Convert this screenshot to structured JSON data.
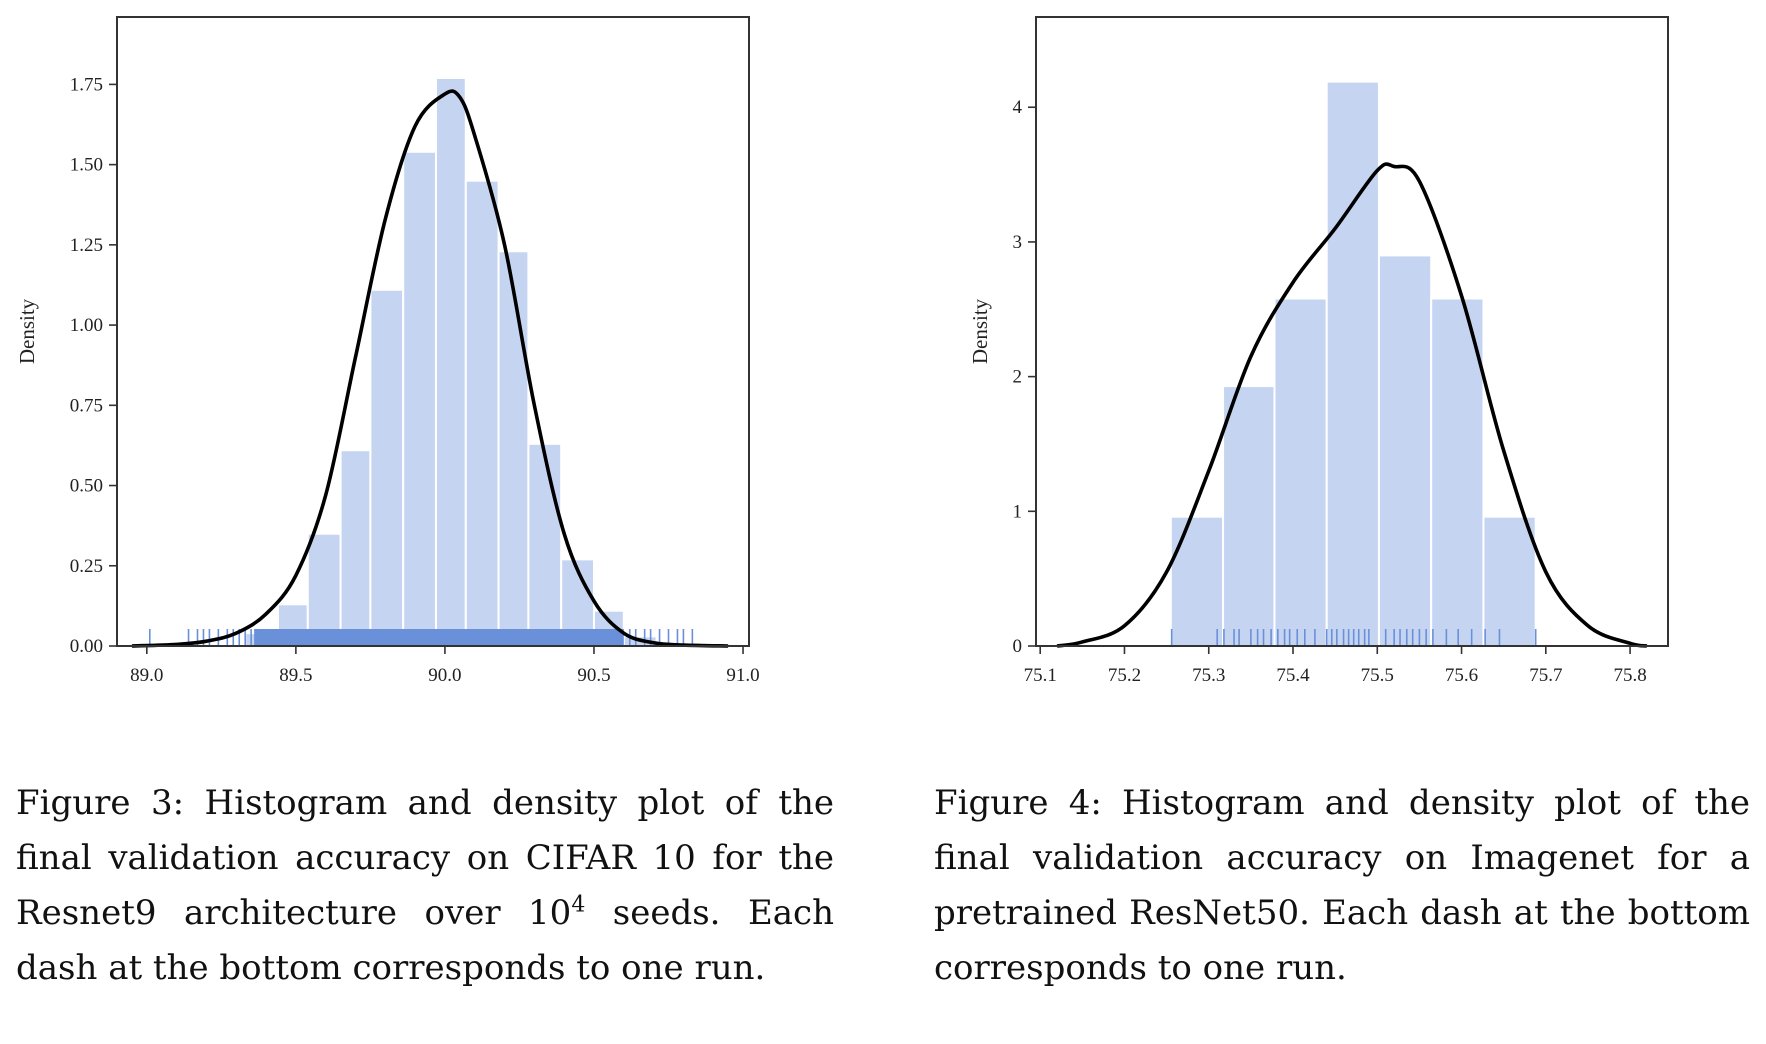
{
  "chart_data": [
    {
      "type": "histogram",
      "ylabel": "Density",
      "xlim": [
        88.9,
        91.02
      ],
      "ylim": [
        0,
        1.96
      ],
      "xticks": [
        89.0,
        89.5,
        90.0,
        90.5,
        91.0
      ],
      "xtick_labels": [
        "89.0",
        "89.5",
        "90.0",
        "90.5",
        "91.0"
      ],
      "yticks": [
        0,
        0.25,
        0.5,
        0.75,
        1.0,
        1.25,
        1.5,
        1.75
      ],
      "ytick_labels": [
        "0.00",
        "0.25",
        "0.50",
        "0.75",
        "1.00",
        "1.25",
        "1.50",
        "1.75"
      ],
      "bins": [
        {
          "x0": 89.33,
          "x1": 89.44,
          "value": 0.04
        },
        {
          "x0": 89.44,
          "x1": 89.54,
          "value": 0.13
        },
        {
          "x0": 89.54,
          "x1": 89.65,
          "value": 0.35
        },
        {
          "x0": 89.65,
          "x1": 89.75,
          "value": 0.61
        },
        {
          "x0": 89.75,
          "x1": 89.86,
          "value": 1.11
        },
        {
          "x0": 89.86,
          "x1": 89.97,
          "value": 1.54
        },
        {
          "x0": 89.97,
          "x1": 90.07,
          "value": 1.77
        },
        {
          "x0": 90.07,
          "x1": 90.18,
          "value": 1.45
        },
        {
          "x0": 90.18,
          "x1": 90.28,
          "value": 1.23
        },
        {
          "x0": 90.28,
          "x1": 90.39,
          "value": 0.63
        },
        {
          "x0": 90.39,
          "x1": 90.5,
          "value": 0.27
        },
        {
          "x0": 90.5,
          "x1": 90.6,
          "value": 0.11
        },
        {
          "x0": 90.6,
          "x1": 90.71,
          "value": 0.03
        }
      ],
      "kde": {
        "x": [
          88.95,
          89.1,
          89.2,
          89.3,
          89.4,
          89.5,
          89.6,
          89.7,
          89.8,
          89.9,
          90.0,
          90.05,
          90.1,
          90.2,
          90.3,
          90.4,
          90.5,
          90.6,
          90.7,
          90.8,
          90.95
        ],
        "y": [
          0.0,
          0.005,
          0.015,
          0.04,
          0.1,
          0.22,
          0.47,
          0.9,
          1.33,
          1.62,
          1.72,
          1.71,
          1.59,
          1.25,
          0.75,
          0.35,
          0.14,
          0.04,
          0.01,
          0.003,
          0.0
        ]
      },
      "rug": {
        "dense_range": [
          89.36,
          90.6
        ],
        "values": [
          89.01,
          89.14,
          89.17,
          89.19,
          89.21,
          89.24,
          89.27,
          89.29,
          89.31,
          89.33,
          89.35,
          89.61,
          90.62,
          90.64,
          90.67,
          90.69,
          90.72,
          90.75,
          90.78,
          90.8,
          90.83
        ]
      },
      "bar_color": "#c5d5f1",
      "rug_color": "#6b90da",
      "line_color": "#000000"
    },
    {
      "type": "histogram",
      "ylabel": "Density",
      "xlim": [
        75.095,
        75.845
      ],
      "ylim": [
        0,
        4.67
      ],
      "xticks": [
        75.1,
        75.2,
        75.3,
        75.4,
        75.5,
        75.6,
        75.7,
        75.8
      ],
      "xtick_labels": [
        "75.1",
        "75.2",
        "75.3",
        "75.4",
        "75.5",
        "75.6",
        "75.7",
        "75.8"
      ],
      "yticks": [
        0,
        1,
        2,
        3,
        4
      ],
      "ytick_labels": [
        "0",
        "1",
        "2",
        "3",
        "4"
      ],
      "bins": [
        {
          "x0": 75.255,
          "x1": 75.317,
          "value": 0.96
        },
        {
          "x0": 75.317,
          "x1": 75.378,
          "value": 1.93
        },
        {
          "x0": 75.378,
          "x1": 75.44,
          "value": 2.58
        },
        {
          "x0": 75.44,
          "x1": 75.502,
          "value": 4.19
        },
        {
          "x0": 75.502,
          "x1": 75.564,
          "value": 2.9
        },
        {
          "x0": 75.564,
          "x1": 75.626,
          "value": 2.58
        },
        {
          "x0": 75.626,
          "x1": 75.688,
          "value": 0.96
        }
      ],
      "kde": {
        "x": [
          75.12,
          75.15,
          75.2,
          75.25,
          75.3,
          75.35,
          75.4,
          75.45,
          75.5,
          75.52,
          75.55,
          75.6,
          75.65,
          75.7,
          75.75,
          75.8,
          75.82
        ],
        "y": [
          0.0,
          0.03,
          0.15,
          0.55,
          1.3,
          2.15,
          2.7,
          3.1,
          3.53,
          3.56,
          3.45,
          2.6,
          1.45,
          0.55,
          0.15,
          0.02,
          0.0
        ]
      },
      "rug": {
        "values": [
          75.256,
          75.31,
          75.318,
          75.33,
          75.336,
          75.35,
          75.358,
          75.365,
          75.374,
          75.382,
          75.39,
          75.396,
          75.405,
          75.414,
          75.426,
          75.44,
          75.446,
          75.452,
          75.46,
          75.466,
          75.472,
          75.478,
          75.485,
          75.49,
          75.51,
          75.52,
          75.527,
          75.535,
          75.542,
          75.55,
          75.558,
          75.566,
          75.582,
          75.596,
          75.612,
          75.628,
          75.645,
          75.688
        ]
      },
      "bar_color": "#c5d5f1",
      "rug_color": "#6b90da",
      "line_color": "#000000"
    }
  ],
  "captions": {
    "fig3_pre": "Figure 3:  Histogram and density plot of the final validation accuracy on CIFAR 10 for the Resnet9 architecture over 10",
    "fig3_sup": "4",
    "fig3_post": " seeds. Each dash at the bottom corresponds to one run.",
    "fig4": "Figure 4:  Histogram and density plot of the final validation accuracy on Imagenet for a pretrained ResNet50.  Each dash at the bottom corresponds to one run."
  }
}
